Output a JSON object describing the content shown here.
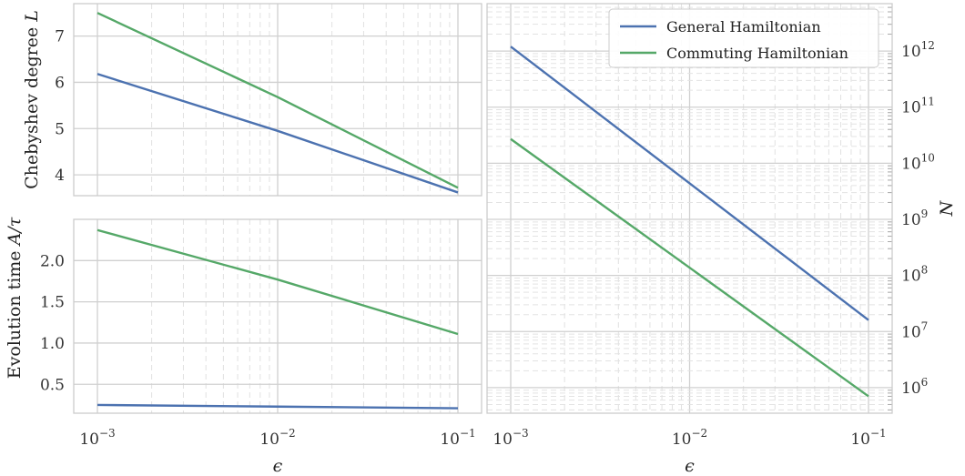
{
  "chart_data": [
    {
      "type": "line",
      "panel": "top-left",
      "xscale": "log",
      "xlim": [
        0.001,
        0.1
      ],
      "ylim": [
        3.55,
        7.7
      ],
      "xlabel": "",
      "ylabel": "Chebyshev degree L",
      "ylabel_text": "Chebyshev degree",
      "ylabel_symbol": "L",
      "yticks": [
        4,
        5,
        6,
        7
      ],
      "ytick_labels": [
        "4",
        "5",
        "6",
        "7"
      ],
      "grid": true,
      "series": [
        {
          "color": "#4c72b0",
          "x": [
            0.001,
            0.01,
            0.1
          ],
          "y": [
            6.18,
            4.95,
            3.62
          ]
        },
        {
          "color": "#55a868",
          "x": [
            0.001,
            0.01,
            0.1
          ],
          "y": [
            7.5,
            5.68,
            3.72
          ]
        }
      ]
    },
    {
      "type": "line",
      "panel": "bottom-left",
      "xscale": "log",
      "xlim": [
        0.001,
        0.1
      ],
      "ylim": [
        0.15,
        2.5
      ],
      "xlabel": "ϵ",
      "ylabel": "Evolution time A/τ",
      "ylabel_text": "Evolution time",
      "ylabel_symbol": "A/τ",
      "yticks": [
        0.5,
        1.0,
        1.5,
        2.0
      ],
      "ytick_labels": [
        "0.5",
        "1.0",
        "1.5",
        "2.0"
      ],
      "xtick_labels": [
        {
          "base": "10",
          "exp": "−3"
        },
        {
          "base": "10",
          "exp": "−2"
        },
        {
          "base": "10",
          "exp": "−1"
        }
      ],
      "grid": true,
      "series": [
        {
          "color": "#4c72b0",
          "x": [
            0.001,
            0.01,
            0.1
          ],
          "y": [
            0.25,
            0.23,
            0.21
          ]
        },
        {
          "color": "#55a868",
          "x": [
            0.001,
            0.01,
            0.1
          ],
          "y": [
            2.37,
            1.77,
            1.11
          ]
        }
      ]
    },
    {
      "type": "line",
      "panel": "right",
      "xscale": "log",
      "yscale": "log",
      "xlim": [
        0.001,
        0.1
      ],
      "ylim": [
        350000.0,
        7000000000000.0
      ],
      "xlabel": "ϵ",
      "ylabel": "N",
      "yaxis_position": "right",
      "ytick_labels": [
        {
          "base": "10",
          "exp": "6"
        },
        {
          "base": "10",
          "exp": "7"
        },
        {
          "base": "10",
          "exp": "8"
        },
        {
          "base": "10",
          "exp": "9"
        },
        {
          "base": "10",
          "exp": "10"
        },
        {
          "base": "10",
          "exp": "11"
        },
        {
          "base": "10",
          "exp": "12"
        }
      ],
      "xtick_labels": [
        {
          "base": "10",
          "exp": "−3"
        },
        {
          "base": "10",
          "exp": "−2"
        },
        {
          "base": "10",
          "exp": "−1"
        }
      ],
      "grid": true,
      "legend_position": "top-right",
      "series": [
        {
          "name": "General Hamiltonian",
          "color": "#4c72b0",
          "x": [
            0.001,
            0.1
          ],
          "y": [
            1200000000000.0,
            16000000.0
          ]
        },
        {
          "name": "Commuting Hamiltonian",
          "color": "#55a868",
          "x": [
            0.001,
            0.1
          ],
          "y": [
            27000000000.0,
            700000.0
          ]
        }
      ]
    }
  ]
}
